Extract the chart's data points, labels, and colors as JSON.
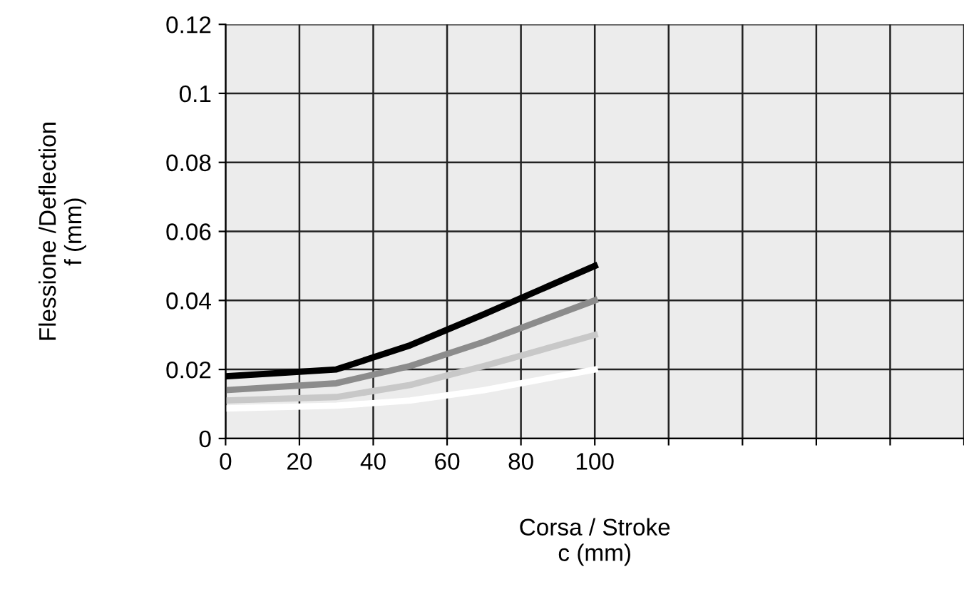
{
  "chart_data": {
    "type": "line",
    "xlabel": "Corsa / Stroke\nc (mm)",
    "ylabel": "Flessione /Deflection\nf (mm)",
    "x": [
      0,
      30,
      50,
      70,
      100
    ],
    "series": [
      {
        "color": "#000000",
        "values": [
          0.018,
          0.02,
          0.027,
          0.036,
          0.05
        ]
      },
      {
        "color": "#8c8c8c",
        "values": [
          0.014,
          0.016,
          0.021,
          0.028,
          0.04
        ]
      },
      {
        "color": "#c8c8c8",
        "values": [
          0.011,
          0.012,
          0.0155,
          0.021,
          0.03
        ]
      },
      {
        "color": "#ffffff",
        "values": [
          0.0087,
          0.0095,
          0.011,
          0.014,
          0.02
        ]
      }
    ],
    "xlim": [
      0,
      200
    ],
    "xticks": [
      0,
      20,
      40,
      60,
      80,
      100,
      {
        "value": 120,
        "label": null
      },
      {
        "value": 140,
        "label": null
      },
      {
        "value": 160,
        "label": null
      },
      {
        "value": 180,
        "label": null
      },
      {
        "value": 200,
        "label": null
      }
    ],
    "ylim": [
      0,
      0.12
    ],
    "yticks": [
      0,
      0.02,
      0.04,
      0.06,
      0.08,
      0.1,
      0.12
    ],
    "grid": true,
    "marker": "none",
    "line_style": "solid"
  }
}
